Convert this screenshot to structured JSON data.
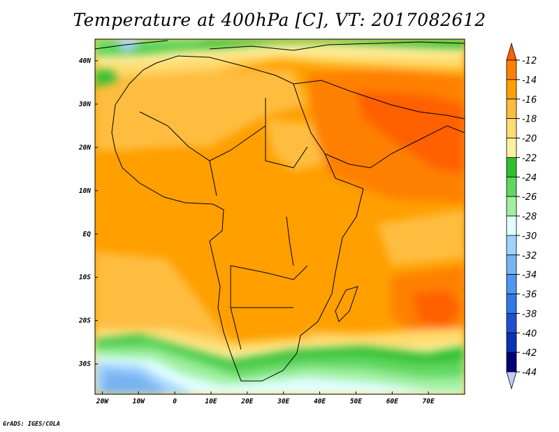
{
  "title": "Temperature at 400hPa [C], VT: 2017082612",
  "credit": "GrADS: IGES/COLA",
  "map": {
    "lon_range": [
      -22,
      80
    ],
    "lat_range": [
      -37,
      45
    ],
    "lon_ticks": [
      {
        "value": -20,
        "label": "20W"
      },
      {
        "value": -10,
        "label": "10W"
      },
      {
        "value": 0,
        "label": "0"
      },
      {
        "value": 10,
        "label": "10E"
      },
      {
        "value": 20,
        "label": "20E"
      },
      {
        "value": 30,
        "label": "30E"
      },
      {
        "value": 40,
        "label": "40E"
      },
      {
        "value": 50,
        "label": "50E"
      },
      {
        "value": 60,
        "label": "60E"
      },
      {
        "value": 70,
        "label": "70E"
      }
    ],
    "lat_ticks": [
      {
        "value": 40,
        "label": "40N"
      },
      {
        "value": 30,
        "label": "30N"
      },
      {
        "value": 20,
        "label": "20N"
      },
      {
        "value": 10,
        "label": "10N"
      },
      {
        "value": 0,
        "label": "EQ"
      },
      {
        "value": -10,
        "label": "10S"
      },
      {
        "value": -20,
        "label": "20S"
      },
      {
        "value": -30,
        "label": "30S"
      }
    ]
  },
  "colorbar": {
    "levels": [
      "-12",
      "-14",
      "-16",
      "-18",
      "-20",
      "-22",
      "-24",
      "-26",
      "-28",
      "-30",
      "-32",
      "-34",
      "-36",
      "-38",
      "-40",
      "-42",
      "-44"
    ],
    "colors": [
      "#ff6000",
      "#ff8000",
      "#ff9f00",
      "#ffbd40",
      "#ffdc70",
      "#fff0a0",
      "#30c030",
      "#60d860",
      "#a0f0a0",
      "#e0ffff",
      "#a0d2ff",
      "#78b4f0",
      "#5096f0",
      "#3278e6",
      "#2050d2",
      "#0a32b4",
      "#000078",
      "#c8c8ff"
    ]
  }
}
